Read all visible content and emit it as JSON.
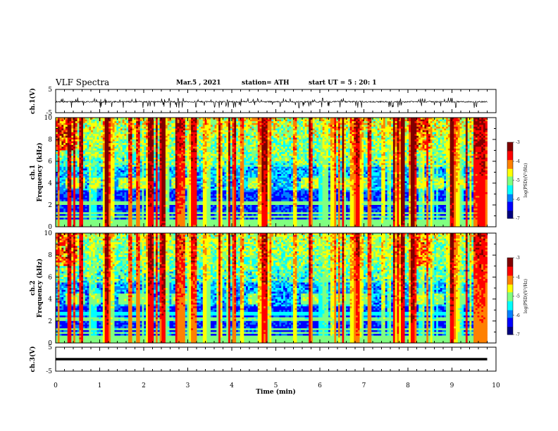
{
  "header": {
    "title": "VLF Spectra",
    "date": "Mar.5 , 2021",
    "station": "station= ATH",
    "start": "start UT = 5 : 20: 1"
  },
  "chart_data": [
    {
      "type": "line",
      "panel": "ch1-waveform",
      "ylabel": "ch.1(V)",
      "ylim": [
        -5,
        5
      ],
      "yticks": [
        "5",
        "-5"
      ],
      "xlim": [
        0,
        10
      ],
      "series": [
        {
          "values_range": [
            -1.5,
            0.5
          ]
        }
      ]
    },
    {
      "type": "heatmap",
      "panel": "ch1-spectrogram",
      "ylabel": "ch.1\nFrequency (kHz)",
      "ylim": [
        0,
        10
      ],
      "yticks": [
        "0",
        "2",
        "4",
        "6",
        "8",
        "10"
      ],
      "xlim": [
        0,
        10
      ],
      "colorbar": {
        "label": "log(PSD)(V²/Hz)",
        "range": [
          -7,
          -3
        ],
        "ticks": [
          "-3",
          "-4",
          "-5",
          "-6",
          "-7"
        ]
      }
    },
    {
      "type": "heatmap",
      "panel": "ch2-spectrogram",
      "ylabel": "ch.2\nFrequency (kHz)",
      "ylim": [
        0,
        10
      ],
      "yticks": [
        "0",
        "2",
        "4",
        "6",
        "8",
        "10"
      ],
      "xlim": [
        0,
        10
      ],
      "colorbar": {
        "label": "log(PSD)(V²/Hz)",
        "range": [
          -7,
          -3
        ],
        "ticks": [
          "-3",
          "-4",
          "-5",
          "-6",
          "-7"
        ]
      }
    },
    {
      "type": "line",
      "panel": "ch3-waveform",
      "ylabel": "ch.3(V)",
      "ylim": [
        -5,
        5
      ],
      "yticks": [
        "5",
        "-5"
      ],
      "xlim": [
        0,
        10
      ],
      "series": [
        {
          "values_range": [
            -0.5,
            0.5
          ]
        }
      ]
    }
  ],
  "xaxis": {
    "label": "Time (min)",
    "ticks": [
      "0",
      "1",
      "2",
      "3",
      "4",
      "5",
      "6",
      "7",
      "8",
      "9",
      "10"
    ],
    "data_end": 9.8
  },
  "colors": {
    "colormap": [
      "#00007f",
      "#0000ff",
      "#0080ff",
      "#00ffff",
      "#80ff80",
      "#ffff00",
      "#ff8000",
      "#ff0000",
      "#800000"
    ]
  }
}
